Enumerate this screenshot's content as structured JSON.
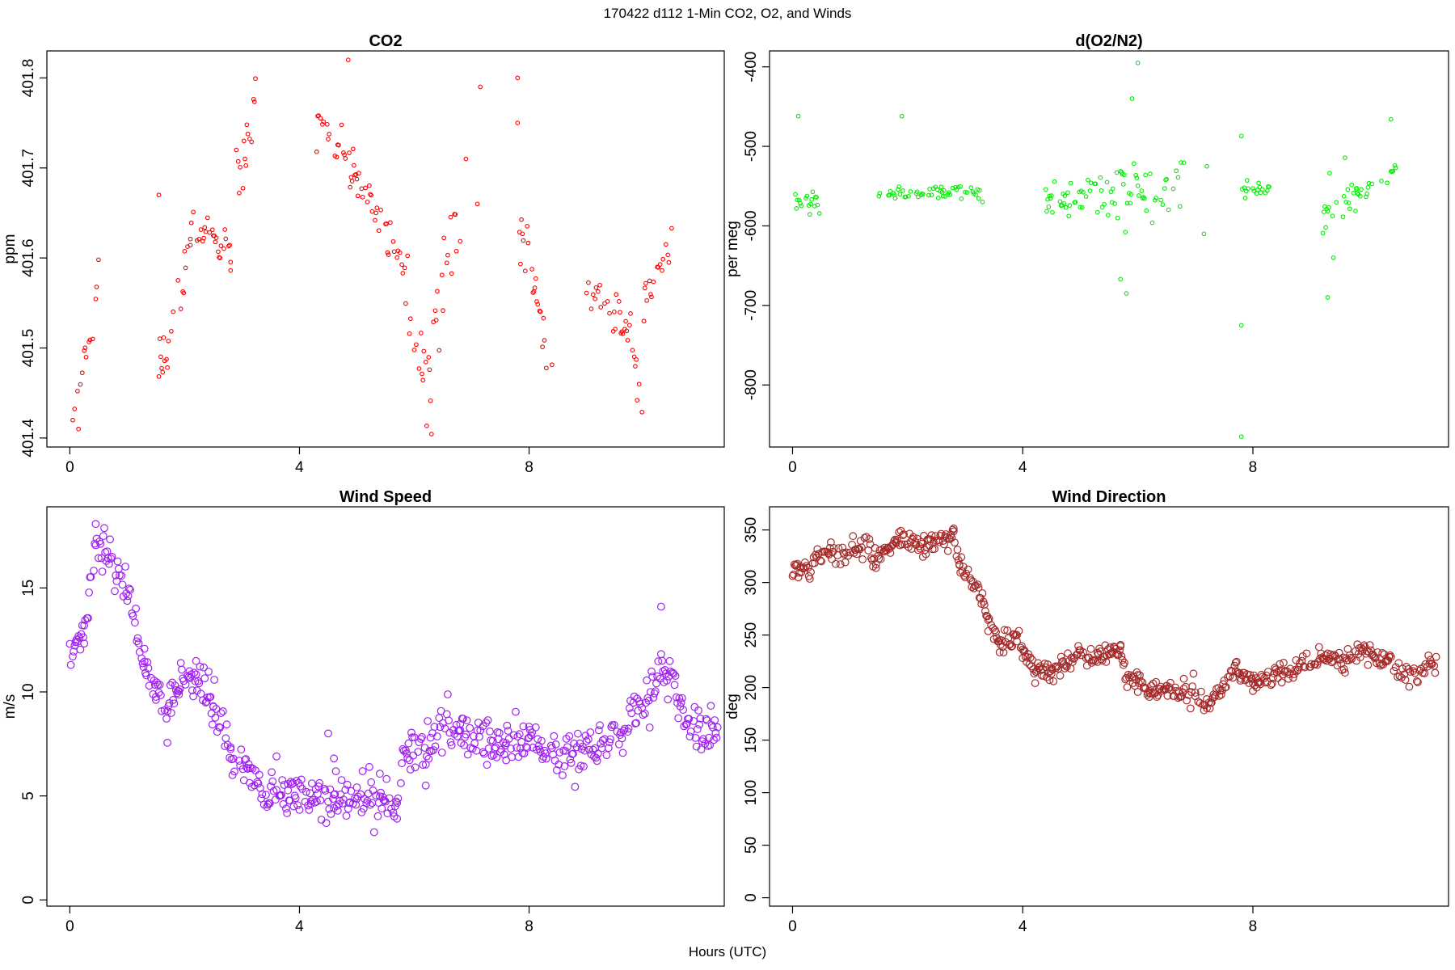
{
  "figure": {
    "title": "170422   d112   1-Min CO2, O2, and Winds",
    "xlabel": "Hours (UTC)"
  },
  "chart_data": [
    {
      "id": "co2",
      "type": "scatter",
      "title": "CO2",
      "ylabel": "ppm",
      "xlim": [
        -0.4,
        11.4
      ],
      "ylim": [
        401.39,
        401.83
      ],
      "xticks": [
        0,
        4,
        8
      ],
      "xtick_labels": [
        "0",
        "4",
        "8"
      ],
      "yticks": [
        401.4,
        401.5,
        401.6,
        401.7,
        401.8
      ],
      "ytick_labels": [
        "401.4",
        "401.5",
        "401.6",
        "401.7",
        "401.8"
      ],
      "marker_color": "#ff0000",
      "segments": [
        {
          "x": [
            0.05,
            0.5
          ],
          "y": [
            401.42,
            401.57
          ],
          "noise": 0.03
        },
        {
          "x": [
            1.5,
            2.1
          ],
          "y": [
            401.46,
            401.6
          ],
          "noise": 0.03
        },
        {
          "x": [
            2.1,
            2.8
          ],
          "y": [
            401.64,
            401.61
          ],
          "noise": 0.02
        },
        {
          "x": [
            2.8,
            3.3
          ],
          "y": [
            401.64,
            401.78
          ],
          "noise": 0.03
        },
        {
          "x": [
            4.3,
            5.0
          ],
          "y": [
            401.76,
            401.69
          ],
          "noise": 0.02
        },
        {
          "x": [
            5.0,
            5.9
          ],
          "y": [
            401.69,
            401.58
          ],
          "noise": 0.02
        },
        {
          "x": [
            5.9,
            6.3
          ],
          "y": [
            401.52,
            401.45
          ],
          "noise": 0.04
        },
        {
          "x": [
            6.3,
            6.8
          ],
          "y": [
            401.52,
            401.66
          ],
          "noise": 0.05
        },
        {
          "x": [
            7.8,
            8.4
          ],
          "y": [
            401.65,
            401.48
          ],
          "noise": 0.04
        },
        {
          "x": [
            9.0,
            9.8
          ],
          "y": [
            401.57,
            401.52
          ],
          "noise": 0.02
        },
        {
          "x": [
            9.8,
            10.0
          ],
          "y": [
            401.48,
            401.42
          ],
          "noise": 0.03
        },
        {
          "x": [
            10.0,
            10.5
          ],
          "y": [
            401.55,
            401.62
          ],
          "noise": 0.02
        }
      ],
      "outliers": [
        [
          0.15,
          401.41
        ],
        [
          1.55,
          401.67
        ],
        [
          4.85,
          401.82
        ],
        [
          7.15,
          401.79
        ],
        [
          7.8,
          401.8
        ],
        [
          7.8,
          401.75
        ],
        [
          3.05,
          401.71
        ],
        [
          7.1,
          401.66
        ],
        [
          6.9,
          401.71
        ]
      ]
    },
    {
      "id": "o2",
      "type": "scatter",
      "title": "d(O2/N2)",
      "ylabel": "per meg",
      "xlim": [
        -0.4,
        11.4
      ],
      "ylim": [
        -878,
        -380
      ],
      "xticks": [
        0,
        4,
        8
      ],
      "xtick_labels": [
        "0",
        "4",
        "8"
      ],
      "yticks": [
        -400,
        -500,
        -600,
        -700,
        -800
      ],
      "ytick_labels": [
        "-400",
        "-500",
        "-600",
        "-700",
        "-800"
      ],
      "marker_color": "#00ee00",
      "segments": [
        {
          "x": [
            0.05,
            0.5
          ],
          "y": [
            -570,
            -570
          ],
          "noise": 14
        },
        {
          "x": [
            1.5,
            3.3
          ],
          "y": [
            -562,
            -556
          ],
          "noise": 9
        },
        {
          "x": [
            4.4,
            5.6
          ],
          "y": [
            -568,
            -558
          ],
          "noise": 22
        },
        {
          "x": [
            5.6,
            6.8
          ],
          "y": [
            -562,
            -548
          ],
          "noise": 32
        },
        {
          "x": [
            7.8,
            8.3
          ],
          "y": [
            -558,
            -555
          ],
          "noise": 10
        },
        {
          "x": [
            9.2,
            9.8
          ],
          "y": [
            -575,
            -560
          ],
          "noise": 25
        },
        {
          "x": [
            9.8,
            10.5
          ],
          "y": [
            -560,
            -528
          ],
          "noise": 12
        }
      ],
      "outliers": [
        [
          0.1,
          -462
        ],
        [
          6.0,
          -395
        ],
        [
          5.9,
          -440
        ],
        [
          7.8,
          -865
        ],
        [
          7.8,
          -725
        ],
        [
          9.3,
          -690
        ],
        [
          5.8,
          -685
        ],
        [
          5.7,
          -667
        ],
        [
          10.4,
          -466
        ],
        [
          1.9,
          -462
        ],
        [
          7.2,
          -525
        ],
        [
          7.8,
          -487
        ],
        [
          7.15,
          -610
        ],
        [
          9.4,
          -640
        ]
      ]
    },
    {
      "id": "wind-speed",
      "type": "scatter",
      "title": "Wind Speed",
      "ylabel": "m/s",
      "xlim": [
        -0.4,
        11.4
      ],
      "ylim": [
        -0.3,
        18.9
      ],
      "xticks": [
        0,
        4,
        8
      ],
      "xtick_labels": [
        "0",
        "4",
        "8"
      ],
      "yticks": [
        0,
        5,
        10,
        15
      ],
      "ytick_labels": [
        "0",
        "5",
        "10",
        "15"
      ],
      "marker_color": "#a020f0",
      "series": [
        [
          0,
          12.1
        ],
        [
          0.25,
          12.5
        ],
        [
          0.45,
          17.3
        ],
        [
          0.7,
          16.5
        ],
        [
          1.0,
          15.0
        ],
        [
          1.3,
          11.2
        ],
        [
          1.5,
          10.2
        ],
        [
          1.7,
          9.0
        ],
        [
          1.9,
          10.5
        ],
        [
          2.2,
          10.8
        ],
        [
          2.5,
          9.5
        ],
        [
          2.8,
          7.0
        ],
        [
          3.1,
          6.3
        ],
        [
          3.4,
          5.2
        ],
        [
          3.8,
          5.0
        ],
        [
          4.2,
          4.9
        ],
        [
          4.6,
          4.9
        ],
        [
          5.0,
          4.7
        ],
        [
          5.4,
          5.0
        ],
        [
          5.7,
          4.8
        ],
        [
          5.8,
          7.0
        ],
        [
          6.1,
          7.2
        ],
        [
          6.5,
          8.1
        ],
        [
          6.8,
          8.2
        ],
        [
          7.2,
          7.6
        ],
        [
          7.6,
          7.5
        ],
        [
          8.0,
          7.8
        ],
        [
          8.3,
          7.3
        ],
        [
          8.6,
          6.8
        ],
        [
          8.9,
          7.0
        ],
        [
          9.2,
          7.5
        ],
        [
          9.5,
          8.0
        ],
        [
          9.8,
          8.8
        ],
        [
          10.1,
          9.5
        ],
        [
          10.3,
          11.0
        ],
        [
          10.5,
          10.5
        ],
        [
          10.7,
          8.8
        ],
        [
          11.0,
          8.0
        ],
        [
          11.3,
          8.3
        ]
      ],
      "noise": 0.55,
      "outliers": [
        [
          10.3,
          14.1
        ],
        [
          4.5,
          8.0
        ],
        [
          3.6,
          6.9
        ],
        [
          4.6,
          6.8
        ],
        [
          6.2,
          5.5
        ]
      ]
    },
    {
      "id": "wind-direction",
      "type": "scatter",
      "title": "Wind Direction",
      "ylabel": "deg",
      "xlim": [
        -0.4,
        11.4
      ],
      "ylim": [
        -8,
        372
      ],
      "xticks": [
        0,
        4,
        8
      ],
      "xtick_labels": [
        "0",
        "4",
        "8"
      ],
      "yticks": [
        0,
        50,
        100,
        150,
        200,
        250,
        300,
        350
      ],
      "ytick_labels": [
        "0",
        "50",
        "100",
        "150",
        "200",
        "250",
        "300",
        "350"
      ],
      "marker_color": "#a52a2a",
      "series": [
        [
          0,
          314
        ],
        [
          0.3,
          314
        ],
        [
          0.4,
          325
        ],
        [
          0.8,
          327
        ],
        [
          1.3,
          332
        ],
        [
          1.45,
          322
        ],
        [
          1.6,
          330
        ],
        [
          1.8,
          340
        ],
        [
          2.3,
          336
        ],
        [
          2.8,
          343
        ],
        [
          2.9,
          315
        ],
        [
          3.2,
          297
        ],
        [
          3.4,
          265
        ],
        [
          3.6,
          242
        ],
        [
          3.9,
          246
        ],
        [
          4.0,
          232
        ],
        [
          4.2,
          218
        ],
        [
          4.5,
          215
        ],
        [
          4.8,
          225
        ],
        [
          5.0,
          233
        ],
        [
          5.3,
          230
        ],
        [
          5.7,
          235
        ],
        [
          5.8,
          210
        ],
        [
          6.0,
          210
        ],
        [
          6.2,
          195
        ],
        [
          6.5,
          198
        ],
        [
          6.8,
          196
        ],
        [
          7.0,
          194
        ],
        [
          7.2,
          185
        ],
        [
          7.5,
          200
        ],
        [
          7.7,
          220
        ],
        [
          7.8,
          212
        ],
        [
          8.0,
          204
        ],
        [
          8.3,
          210
        ],
        [
          8.6,
          214
        ],
        [
          9.0,
          222
        ],
        [
          9.3,
          232
        ],
        [
          9.6,
          226
        ],
        [
          9.9,
          238
        ],
        [
          10.1,
          230
        ],
        [
          10.4,
          223
        ],
        [
          10.6,
          212
        ],
        [
          10.9,
          214
        ],
        [
          11.2,
          225
        ]
      ],
      "noise": 5
    }
  ]
}
